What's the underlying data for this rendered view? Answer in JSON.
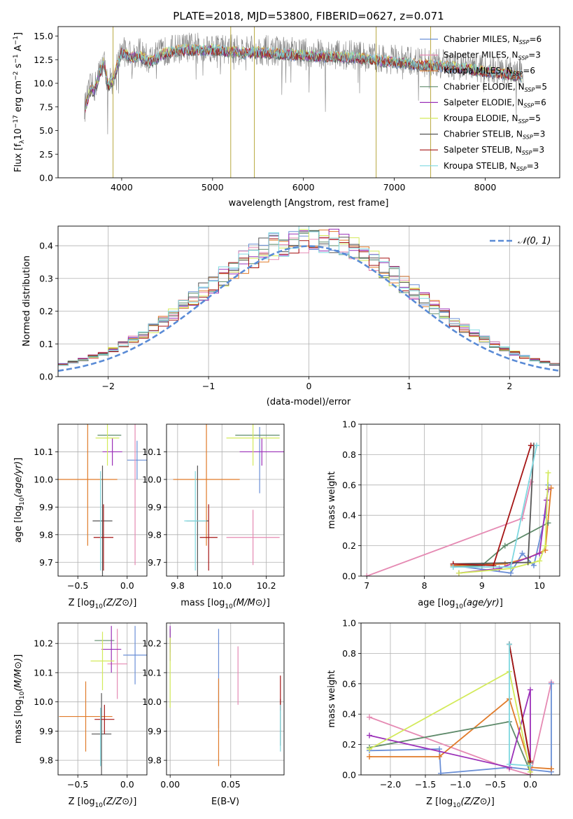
{
  "figure_title": "PLATE=2018, MJD=53800, FIBERID=0627, z=0.071",
  "palette": {
    "chabrier_miles": "#6a8fd6",
    "salpeter_miles": "#e58ab3",
    "kroupa_miles": "#e07b2a",
    "chabrier_elodie": "#5e8a6a",
    "salpeter_elodie": "#9b30b8",
    "kroupa_elodie": "#d3ea5a",
    "chabrier_stelib": "#555555",
    "salpeter_stelib": "#a51515",
    "kroupa_stelib": "#7fd8e0",
    "data": "#808080",
    "normal": "#5a8bd6"
  },
  "chart_data": [
    {
      "id": "spectrum",
      "type": "line",
      "title": "PLATE=2018, MJD=53800, FIBERID=0627, z=0.071",
      "xlabel": "wavelength [Angstrom, rest frame]",
      "ylabel": "Flux [f_λ10^-17 erg cm^-2 s^-1 A^-1]",
      "xlim": [
        3300,
        8820
      ],
      "ylim": [
        0,
        16
      ],
      "xticks": [
        "4000",
        "5000",
        "6000",
        "7000",
        "8000"
      ],
      "yticks": [
        "0.0",
        "2.5",
        "5.0",
        "7.5",
        "10.0",
        "12.5",
        "15.0"
      ],
      "legend_position": "right",
      "legend": [
        {
          "label": "Chabrier MILES, N",
          "sub": "SSP",
          "tail": "=6",
          "color": "#6a8fd6"
        },
        {
          "label": "Salpeter MILES, N",
          "sub": "SSP",
          "tail": "=3",
          "color": "#e58ab3"
        },
        {
          "label": "Kroupa MILES, N",
          "sub": "SSP",
          "tail": "=6",
          "color": "#e07b2a"
        },
        {
          "label": "Chabrier ELODIE, N",
          "sub": "SSP",
          "tail": "=5",
          "color": "#5e8a6a"
        },
        {
          "label": "Salpeter ELODIE, N",
          "sub": "SSP",
          "tail": "=6",
          "color": "#9b30b8"
        },
        {
          "label": "Kroupa ELODIE, N",
          "sub": "SSP",
          "tail": "=5",
          "color": "#d3ea5a"
        },
        {
          "label": "Chabrier STELIB, N",
          "sub": "SSP",
          "tail": "=3",
          "color": "#555555"
        },
        {
          "label": "Salpeter STELIB, N",
          "sub": "SSP",
          "tail": "=3",
          "color": "#a51515"
        },
        {
          "label": "Kroupa STELIB, N",
          "sub": "SSP",
          "tail": "=3",
          "color": "#7fd8e0"
        }
      ],
      "spectrum_envelope": {
        "x": [
          3600,
          3650,
          3700,
          3750,
          3800,
          3850,
          3900,
          3950,
          4000,
          4100,
          4200,
          4300,
          4400,
          4500,
          4700,
          5000,
          5300,
          5600,
          6000,
          6500,
          7000,
          7300,
          7600,
          8000,
          8400
        ],
        "y": [
          7.5,
          9.5,
          9.5,
          11.0,
          12.5,
          10.0,
          10.5,
          12.0,
          13.5,
          13.0,
          13.2,
          12.5,
          13.0,
          13.5,
          13.8,
          13.8,
          13.5,
          13.5,
          13.2,
          13.0,
          12.5,
          12.2,
          12.0,
          11.5,
          11.0
        ]
      },
      "sky_line_spikes_at": [
        3905,
        5200,
        5460,
        6800,
        7400
      ]
    },
    {
      "id": "residual_histogram",
      "type": "bar",
      "xlabel": "(data-model)/error",
      "ylabel": "Normed distribution",
      "xlim": [
        -2.5,
        2.5
      ],
      "ylim": [
        0,
        0.46
      ],
      "xticks": [
        "−2",
        "−1",
        "0",
        "1",
        "2"
      ],
      "yticks": [
        "0.0",
        "0.1",
        "0.2",
        "0.3",
        "0.4"
      ],
      "legend_position": "top-right",
      "legend": [
        {
          "label": "𝒩(0, 1)",
          "color": "#5a8bd6"
        }
      ],
      "bin_width": 0.1,
      "bin_start": -2.5
    },
    {
      "id": "age_vs_Z",
      "type": "scatter",
      "xlabel": "Z [log10(Z/Z⊙)]",
      "ylabel": "age [log10(age/yr)]",
      "xlim": [
        -0.7,
        0.2
      ],
      "ylim": [
        9.65,
        10.2
      ],
      "xticks": [
        "−0.5",
        "0.0"
      ],
      "yticks": [
        "9.7",
        "9.8",
        "9.9",
        "10.0",
        "10.1"
      ],
      "points": [
        {
          "model": "chabrier_miles",
          "x": 0.1,
          "y": 10.07,
          "xerr": 0.1,
          "yerr": 0.07
        },
        {
          "model": "salpeter_miles",
          "x": 0.08,
          "y": 9.95,
          "xerr": 0.0,
          "yerr": 0.26
        },
        {
          "model": "kroupa_miles",
          "x": -0.4,
          "y": 10.0,
          "xerr": 0.3,
          "yerr": 0.24
        },
        {
          "model": "chabrier_elodie",
          "x": -0.18,
          "y": 10.16,
          "xerr": 0.12,
          "yerr": 0.0
        },
        {
          "model": "salpeter_elodie",
          "x": -0.15,
          "y": 10.1,
          "xerr": 0.1,
          "yerr": 0.05
        },
        {
          "model": "kroupa_elodie",
          "x": -0.2,
          "y": 10.15,
          "xerr": 0.12,
          "yerr": 0.1
        },
        {
          "model": "chabrier_stelib",
          "x": -0.25,
          "y": 9.85,
          "xerr": 0.1,
          "yerr": 0.2
        },
        {
          "model": "salpeter_stelib",
          "x": -0.24,
          "y": 9.79,
          "xerr": 0.1,
          "yerr": 0.12
        },
        {
          "model": "kroupa_stelib",
          "x": -0.27,
          "y": 9.85,
          "xerr": 0.0,
          "yerr": 0.18
        }
      ]
    },
    {
      "id": "age_vs_mass",
      "type": "scatter",
      "xlabel": "mass [log10(M/M⊙)]",
      "ylabel": "",
      "xlim": [
        9.75,
        10.28
      ],
      "ylim": [
        9.65,
        10.2
      ],
      "xticks": [
        "9.8",
        "10.0",
        "10.2"
      ],
      "yticks": [
        "9.7",
        "9.8",
        "9.9",
        "10.0",
        "10.1"
      ],
      "points": [
        {
          "model": "chabrier_miles",
          "x": 10.17,
          "y": 10.07,
          "xerr": 0.0,
          "yerr": 0.12
        },
        {
          "model": "salpeter_miles",
          "x": 10.14,
          "y": 9.79,
          "xerr": 0.12,
          "yerr": 0.1
        },
        {
          "model": "kroupa_miles",
          "x": 9.93,
          "y": 10.0,
          "xerr": 0.15,
          "yerr": 0.24
        },
        {
          "model": "chabrier_elodie",
          "x": 10.16,
          "y": 10.16,
          "xerr": 0.1,
          "yerr": 0.0
        },
        {
          "model": "salpeter_elodie",
          "x": 10.18,
          "y": 10.1,
          "xerr": 0.1,
          "yerr": 0.05
        },
        {
          "model": "kroupa_elodie",
          "x": 10.14,
          "y": 10.15,
          "xerr": 0.12,
          "yerr": 0.1
        },
        {
          "model": "chabrier_stelib",
          "x": 9.89,
          "y": 9.85,
          "xerr": 0.05,
          "yerr": 0.2
        },
        {
          "model": "salpeter_stelib",
          "x": 9.94,
          "y": 9.79,
          "xerr": 0.04,
          "yerr": 0.12
        },
        {
          "model": "kroupa_stelib",
          "x": 9.88,
          "y": 9.85,
          "xerr": 0.05,
          "yerr": 0.18
        }
      ]
    },
    {
      "id": "weight_vs_age",
      "type": "line",
      "xlabel": "age [log10(age/yr)]",
      "ylabel": "mass weight",
      "xlim": [
        6.9,
        10.35
      ],
      "ylim": [
        0,
        1.0
      ],
      "xticks": [
        "7",
        "8",
        "9",
        "10"
      ],
      "yticks": [
        "0.0",
        "0.2",
        "0.4",
        "0.6",
        "0.8",
        "1.0"
      ],
      "series": [
        {
          "model": "salpeter_miles",
          "x": [
            7.0,
            9.7,
            9.85
          ],
          "y": [
            0.0,
            0.38,
            0.62
          ]
        },
        {
          "model": "chabrier_miles",
          "x": [
            8.5,
            9.5,
            9.7,
            9.9,
            10.1,
            10.15
          ],
          "y": [
            0.07,
            0.02,
            0.15,
            0.07,
            0.4,
            0.6
          ]
        },
        {
          "model": "kroupa_miles",
          "x": [
            8.5,
            9.4,
            9.8,
            10.1,
            10.2
          ],
          "y": [
            0.07,
            0.08,
            0.12,
            0.17,
            0.58
          ]
        },
        {
          "model": "chabrier_elodie",
          "x": [
            8.5,
            9.0,
            9.4,
            10.15
          ],
          "y": [
            0.06,
            0.07,
            0.2,
            0.35
          ]
        },
        {
          "model": "salpeter_elodie",
          "x": [
            8.6,
            9.3,
            10.0,
            10.12,
            10.15
          ],
          "y": [
            0.02,
            0.05,
            0.15,
            0.5,
            0.57
          ]
        },
        {
          "model": "kroupa_elodie",
          "x": [
            8.6,
            9.5,
            10.0,
            10.1,
            10.15
          ],
          "y": [
            0.02,
            0.05,
            0.1,
            0.2,
            0.68
          ]
        },
        {
          "model": "chabrier_stelib",
          "x": [
            8.5,
            9.8,
            9.9
          ],
          "y": [
            0.08,
            0.09,
            0.86
          ]
        },
        {
          "model": "salpeter_stelib",
          "x": [
            8.5,
            9.2,
            9.85
          ],
          "y": [
            0.08,
            0.07,
            0.86
          ]
        },
        {
          "model": "kroupa_stelib",
          "x": [
            8.5,
            9.5,
            9.95
          ],
          "y": [
            0.06,
            0.06,
            0.86
          ]
        }
      ]
    },
    {
      "id": "mass_vs_Z",
      "type": "scatter",
      "xlabel": "Z [log10(Z/Z⊙)]",
      "ylabel": "mass [log10(M/M⊙)]",
      "xlim": [
        -0.7,
        0.2
      ],
      "ylim": [
        9.75,
        10.27
      ],
      "xticks": [
        "−0.5",
        "0.0"
      ],
      "yticks": [
        "9.8",
        "9.9",
        "10.0",
        "10.1",
        "10.2"
      ],
      "points": [
        {
          "model": "chabrier_miles",
          "x": 0.08,
          "y": 10.16,
          "xerr": 0.12,
          "yerr": 0.1
        },
        {
          "model": "salpeter_miles",
          "x": -0.1,
          "y": 10.13,
          "xerr": 0.1,
          "yerr": 0.12
        },
        {
          "model": "kroupa_miles",
          "x": -0.42,
          "y": 9.95,
          "xerr": 0.27,
          "yerr": 0.12
        },
        {
          "model": "chabrier_elodie",
          "x": -0.23,
          "y": 10.21,
          "xerr": 0.1,
          "yerr": 0.0
        },
        {
          "model": "salpeter_elodie",
          "x": -0.16,
          "y": 10.18,
          "xerr": 0.1,
          "yerr": 0.08
        },
        {
          "model": "kroupa_elodie",
          "x": -0.25,
          "y": 10.14,
          "xerr": 0.12,
          "yerr": 0.1
        },
        {
          "model": "chabrier_stelib",
          "x": -0.26,
          "y": 9.89,
          "xerr": 0.1,
          "yerr": 0.14
        },
        {
          "model": "salpeter_stelib",
          "x": -0.23,
          "y": 9.94,
          "xerr": 0.1,
          "yerr": 0.05
        },
        {
          "model": "kroupa_stelib",
          "x": -0.27,
          "y": 9.88,
          "xerr": 0.0,
          "yerr": 0.1
        }
      ]
    },
    {
      "id": "mass_vs_ebv",
      "type": "scatter",
      "xlabel": "E(B-V)",
      "ylabel": "",
      "xlim": [
        -0.003,
        0.094
      ],
      "ylim": [
        9.75,
        10.27
      ],
      "xticks": [
        "0.00",
        "0.05"
      ],
      "yticks": [
        "9.8",
        "9.9",
        "10.0",
        "10.1",
        "10.2"
      ],
      "points": [
        {
          "model": "chabrier_miles",
          "x": 0.04,
          "y": 10.08,
          "xerr": 0.0,
          "yerr": 0.17
        },
        {
          "model": "salpeter_miles",
          "x": 0.056,
          "y": 10.09,
          "xerr": 0.0,
          "yerr": 0.1
        },
        {
          "model": "kroupa_miles",
          "x": 0.04,
          "y": 9.93,
          "xerr": 0.0,
          "yerr": 0.15
        },
        {
          "model": "chabrier_elodie",
          "x": 0.0,
          "y": 10.21,
          "xerr": 0.0,
          "yerr": 0.04
        },
        {
          "model": "salpeter_elodie",
          "x": 0.0,
          "y": 10.2,
          "xerr": 0.0,
          "yerr": 0.06
        },
        {
          "model": "kroupa_elodie",
          "x": 0.0,
          "y": 10.1,
          "xerr": 0.0,
          "yerr": 0.12
        },
        {
          "model": "chabrier_stelib",
          "x": 0.091,
          "y": 9.93,
          "xerr": 0.0,
          "yerr": 0.08
        },
        {
          "model": "salpeter_stelib",
          "x": 0.091,
          "y": 10.03,
          "xerr": 0.0,
          "yerr": 0.06
        },
        {
          "model": "kroupa_stelib",
          "x": 0.091,
          "y": 9.91,
          "xerr": 0.0,
          "yerr": 0.08
        }
      ]
    },
    {
      "id": "weight_vs_Z",
      "type": "line",
      "xlabel": "Z [log10(Z/Z⊙)]",
      "ylabel": "mass weight",
      "xlim": [
        -2.42,
        0.42
      ],
      "ylim": [
        0,
        1.0
      ],
      "xticks": [
        "−2.0",
        "−1.5",
        "−1.0",
        "−0.5",
        "0.0"
      ],
      "yticks": [
        "0.0",
        "0.2",
        "0.4",
        "0.6",
        "0.8",
        "1.0"
      ],
      "series": [
        {
          "model": "salpeter_miles",
          "x": [
            -2.3,
            -0.3,
            0.0,
            0.3
          ],
          "y": [
            0.38,
            0.04,
            0.0,
            0.61
          ]
        },
        {
          "model": "chabrier_miles",
          "x": [
            -2.3,
            -1.3,
            -1.28,
            -0.3,
            0.3,
            0.3
          ],
          "y": [
            0.16,
            0.17,
            0.01,
            0.05,
            0.02,
            0.6
          ]
        },
        {
          "model": "kroupa_miles",
          "x": [
            -2.3,
            -1.3,
            -0.3,
            0.0,
            0.3
          ],
          "y": [
            0.12,
            0.12,
            0.5,
            0.05,
            0.04
          ]
        },
        {
          "model": "chabrier_elodie",
          "x": [
            -2.3,
            -0.3,
            0.0
          ],
          "y": [
            0.18,
            0.35,
            0.02
          ]
        },
        {
          "model": "salpeter_elodie",
          "x": [
            -2.3,
            -0.3,
            0.0,
            0.0
          ],
          "y": [
            0.26,
            0.05,
            0.56,
            0.0
          ]
        },
        {
          "model": "kroupa_elodie",
          "x": [
            -2.3,
            -0.3,
            0.0
          ],
          "y": [
            0.17,
            0.68,
            0.02
          ]
        },
        {
          "model": "chabrier_stelib",
          "x": [
            -0.3,
            0.0
          ],
          "y": [
            0.86,
            0.08
          ]
        },
        {
          "model": "salpeter_stelib",
          "x": [
            -0.3,
            0.0
          ],
          "y": [
            0.86,
            0.09
          ]
        },
        {
          "model": "kroupa_stelib",
          "x": [
            -0.3,
            -0.3,
            0.0
          ],
          "y": [
            0.86,
            0.07,
            0.06
          ]
        }
      ]
    }
  ]
}
